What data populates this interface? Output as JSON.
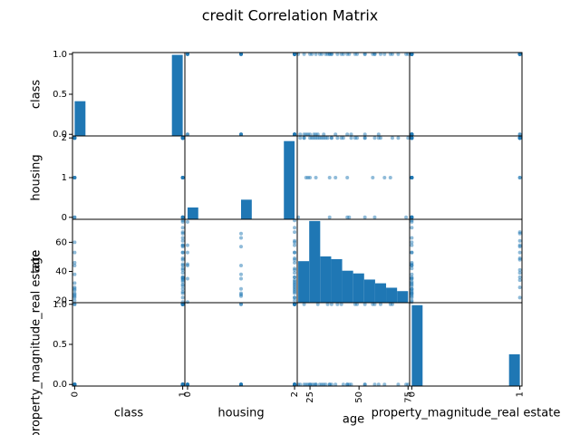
{
  "chart_data": {
    "type": "scatter_matrix",
    "title": "credit Correlation Matrix",
    "color": "#1f77b4",
    "variables": [
      {
        "name": "class",
        "lim": [
          -0.02,
          1.02
        ],
        "yticks": [
          {
            "value": 0,
            "label": "0.0"
          },
          {
            "value": 0.5,
            "label": "0.5"
          },
          {
            "value": 1,
            "label": "1.0"
          }
        ],
        "xticks": [
          0,
          1
        ],
        "bins": [
          0,
          0.1,
          0.2,
          0.3,
          0.4,
          0.5,
          0.6,
          0.7,
          0.8,
          0.9,
          1
        ],
        "counts": [
          300,
          0,
          0,
          0,
          0,
          0,
          0,
          0,
          0,
          700
        ],
        "hist_ylim": [
          0,
          720
        ]
      },
      {
        "name": "housing",
        "lim": [
          -0.05,
          2.05
        ],
        "yticks": [
          0,
          1,
          2
        ],
        "xticks": [
          0,
          2
        ],
        "bins": [
          0,
          0.2,
          0.4,
          0.6,
          0.8,
          1,
          1.2,
          1.4,
          1.6,
          1.8,
          2
        ],
        "counts": [
          108,
          0,
          0,
          0,
          0,
          179,
          0,
          0,
          0,
          713
        ],
        "hist_ylim": [
          0,
          760
        ]
      },
      {
        "name": "age",
        "lim": [
          18.5,
          75.8
        ],
        "yticks": [
          20,
          40,
          60
        ],
        "xticks": [
          25,
          50,
          75
        ],
        "bins": [
          19,
          24.6,
          30.2,
          35.8,
          41.4,
          47,
          52.6,
          58.2,
          63.8,
          69.4,
          75
        ],
        "counts": [
          122,
          240,
          136,
          128,
          94,
          86,
          68,
          57,
          44,
          34
        ],
        "hist_ylim": [
          0,
          245
        ]
      },
      {
        "name": "property_magnitude_real estate",
        "lim": [
          -0.02,
          1.02
        ],
        "yticks": [
          {
            "value": 0,
            "label": "0.0"
          },
          {
            "value": 0.5,
            "label": "0.5"
          },
          {
            "value": 1,
            "label": "1.0"
          }
        ],
        "xticks": [
          0,
          1
        ],
        "bins": [
          0,
          0.1,
          0.2,
          0.3,
          0.4,
          0.5,
          0.6,
          0.7,
          0.8,
          0.9,
          1
        ],
        "counts": [
          718,
          0,
          0,
          0,
          0,
          0,
          0,
          0,
          0,
          282
        ],
        "hist_ylim": [
          0,
          740
        ]
      }
    ],
    "rows": [
      [
        1,
        2,
        67,
        1
      ],
      [
        0,
        2,
        22,
        1
      ],
      [
        1,
        2,
        49,
        1
      ],
      [
        1,
        0,
        45,
        0
      ],
      [
        0,
        0,
        53,
        0
      ],
      [
        1,
        0,
        35,
        0
      ],
      [
        1,
        2,
        53,
        0
      ],
      [
        1,
        1,
        35,
        0
      ],
      [
        1,
        2,
        61,
        1
      ],
      [
        0,
        2,
        28,
        0
      ],
      [
        0,
        1,
        25,
        0
      ],
      [
        0,
        1,
        24,
        0
      ],
      [
        1,
        2,
        22,
        0
      ],
      [
        0,
        2,
        60,
        0
      ],
      [
        1,
        1,
        28,
        0
      ],
      [
        0,
        2,
        32,
        0
      ],
      [
        1,
        2,
        53,
        1
      ],
      [
        1,
        2,
        25,
        0
      ],
      [
        0,
        0,
        44,
        0
      ],
      [
        1,
        2,
        31,
        0
      ],
      [
        1,
        2,
        48,
        1
      ],
      [
        1,
        1,
        44,
        0
      ],
      [
        1,
        2,
        26,
        0
      ],
      [
        1,
        2,
        36,
        0
      ],
      [
        1,
        2,
        39,
        1
      ],
      [
        1,
        2,
        42,
        0
      ],
      [
        1,
        2,
        34,
        1
      ],
      [
        1,
        1,
        63,
        0
      ],
      [
        1,
        2,
        36,
        1
      ],
      [
        0,
        2,
        27,
        0
      ],
      [
        1,
        2,
        30,
        0
      ],
      [
        1,
        1,
        57,
        1
      ],
      [
        1,
        2,
        33,
        0
      ],
      [
        1,
        0,
        19,
        0
      ],
      [
        0,
        1,
        23,
        0
      ],
      [
        1,
        2,
        75,
        0
      ],
      [
        1,
        0,
        74,
        0
      ],
      [
        0,
        2,
        20,
        0
      ],
      [
        1,
        1,
        66,
        1
      ],
      [
        1,
        2,
        70,
        0
      ],
      [
        0,
        2,
        29,
        1
      ],
      [
        1,
        2,
        41,
        1
      ],
      [
        0,
        1,
        38,
        0
      ],
      [
        1,
        0,
        58,
        0
      ],
      [
        1,
        2,
        58,
        1
      ],
      [
        0,
        2,
        46,
        0
      ]
    ]
  }
}
